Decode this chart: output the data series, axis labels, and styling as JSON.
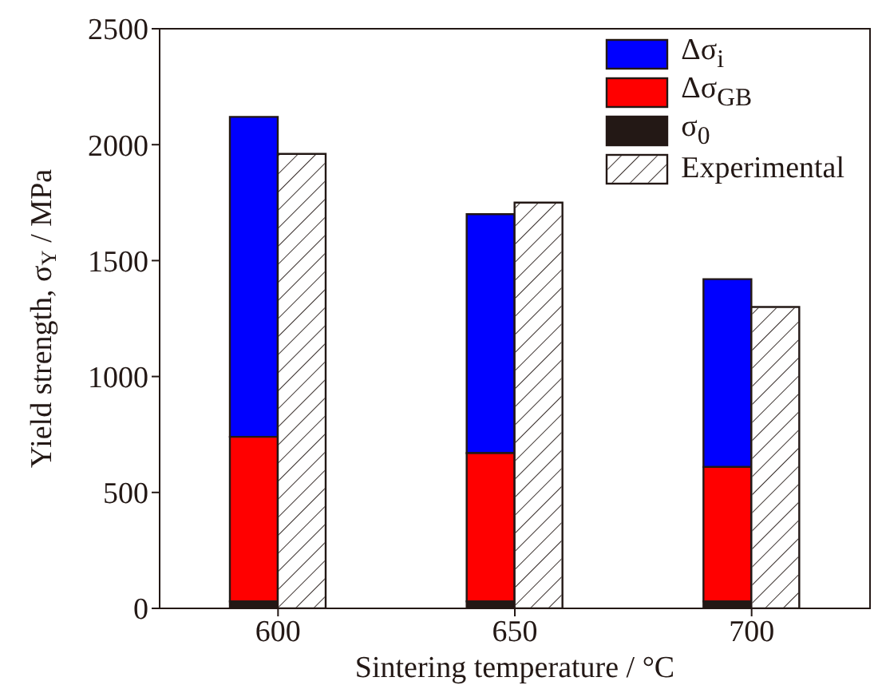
{
  "chart_data": {
    "type": "bar",
    "xlabel": "Sintering temperature / °C",
    "ylabel": "Yield strength, σ$_{Y}$ / MPa",
    "categories": [
      "600",
      "650",
      "700"
    ],
    "series": [
      {
        "name": "Δσ$_{i}$",
        "color": "#0000ff",
        "values": [
          1380,
          1030,
          810
        ],
        "base": [
          740,
          670,
          610
        ]
      },
      {
        "name": "Δσ$_{GB}$",
        "color": "#ff0000",
        "values": [
          710,
          640,
          580
        ],
        "base": [
          30,
          30,
          30
        ]
      },
      {
        "name": "σ$_{0}$",
        "color": "#231815",
        "values": [
          30,
          30,
          30
        ],
        "base": [
          0,
          0,
          0
        ]
      },
      {
        "name": "Experimental",
        "color": "#ffffff",
        "values": [
          1960,
          1750,
          1300
        ]
      }
    ],
    "ylim": [
      0,
      2500
    ],
    "yticks": [
      0,
      500,
      1000,
      1500,
      2000,
      2500
    ],
    "legend": "top right"
  }
}
